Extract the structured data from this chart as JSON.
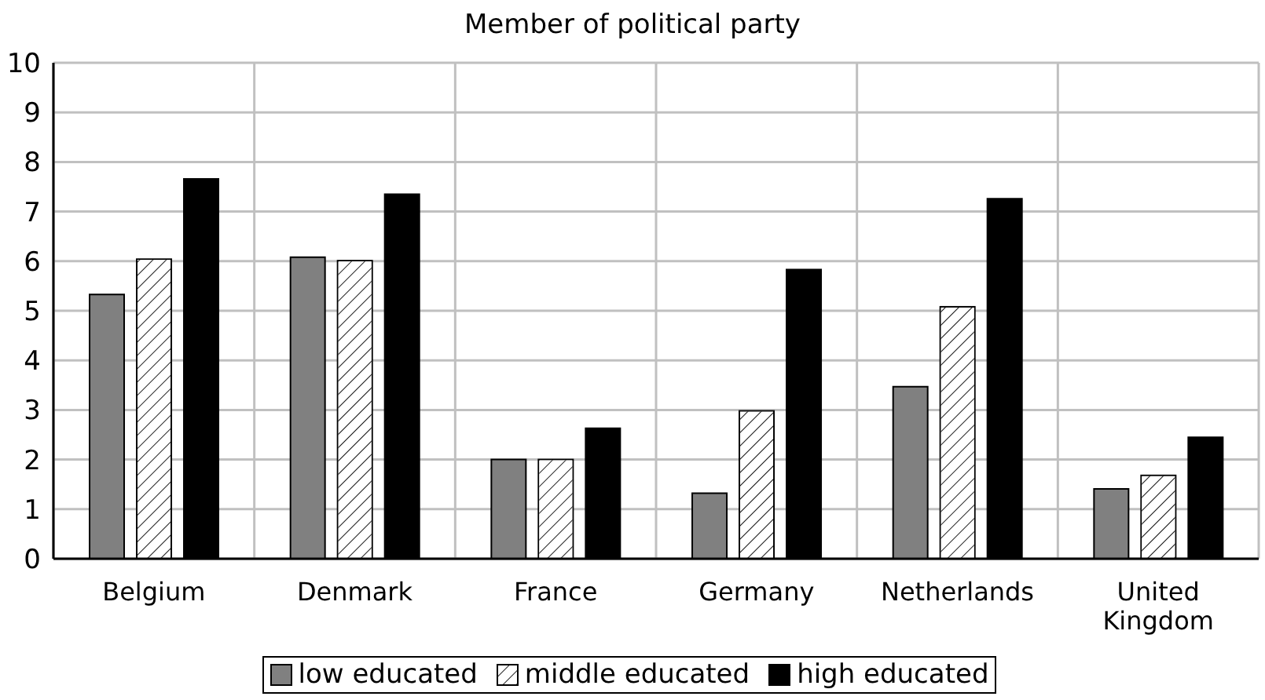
{
  "chart_data": {
    "type": "bar",
    "title": "Member of political party",
    "categories": [
      "Belgium",
      "Denmark",
      "France",
      "Germany",
      "Netherlands",
      "United Kingdom"
    ],
    "series": [
      {
        "name": "low educated",
        "color": "#808080",
        "values": [
          5.33,
          6.08,
          2.0,
          1.32,
          3.47,
          1.41
        ]
      },
      {
        "name": "middle educated",
        "color": "#ffffff",
        "values": [
          6.04,
          6.01,
          2.0,
          2.98,
          5.08,
          1.68
        ]
      },
      {
        "name": "high educated",
        "color": "#000000",
        "values": [
          7.66,
          7.35,
          2.63,
          5.83,
          7.26,
          2.45
        ]
      }
    ],
    "ylim": [
      0,
      10
    ],
    "yticks": [
      0,
      1,
      2,
      3,
      4,
      5,
      6,
      7,
      8,
      9,
      10
    ],
    "grid": true,
    "legend": "bottom"
  }
}
